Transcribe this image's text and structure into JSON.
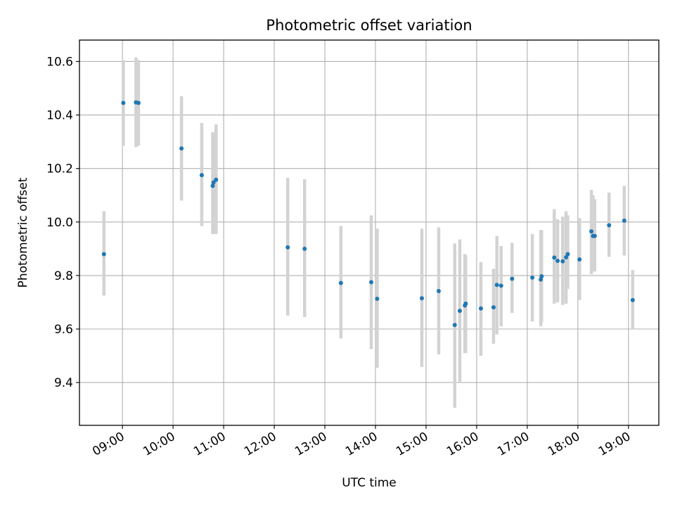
{
  "chart_data": {
    "type": "scatter",
    "title": "Photometric offset variation",
    "xlabel": "UTC time",
    "ylabel": "Photometric offset",
    "x_tick_labels": [
      "09:00",
      "10:00",
      "11:00",
      "12:00",
      "13:00",
      "14:00",
      "15:00",
      "16:00",
      "17:00",
      "18:00",
      "19:00"
    ],
    "y_tick_labels": [
      "9.4",
      "9.6",
      "9.8",
      "10.0",
      "10.2",
      "10.4",
      "10.6"
    ],
    "y_ticks": [
      9.4,
      9.6,
      9.8,
      10.0,
      10.2,
      10.4,
      10.6
    ],
    "xlim": [
      "08:09",
      "19:36"
    ],
    "ylim": [
      9.24,
      10.68
    ],
    "grid": true,
    "colors": {
      "point": "#1f77b4",
      "errorbar": "#d3d3d3",
      "grid": "#b0b0b0",
      "axes": "#000000"
    },
    "points": [
      {
        "time": "08:38",
        "y": 9.88,
        "ylo": 9.725,
        "yhi": 10.04
      },
      {
        "time": "09:01",
        "y": 10.445,
        "ylo": 10.285,
        "yhi": 10.605
      },
      {
        "time": "09:16",
        "y": 10.447,
        "ylo": 10.28,
        "yhi": 10.615
      },
      {
        "time": "09:19",
        "y": 10.445,
        "ylo": 10.285,
        "yhi": 10.605
      },
      {
        "time": "10:10",
        "y": 10.275,
        "ylo": 10.08,
        "yhi": 10.47
      },
      {
        "time": "10:34",
        "y": 10.175,
        "ylo": 9.985,
        "yhi": 10.37
      },
      {
        "time": "10:47",
        "y": 10.135,
        "ylo": 9.955,
        "yhi": 10.335
      },
      {
        "time": "10:48",
        "y": 10.148,
        "ylo": 9.955,
        "yhi": 10.335
      },
      {
        "time": "10:51",
        "y": 10.158,
        "ylo": 9.955,
        "yhi": 10.365
      },
      {
        "time": "12:16",
        "y": 9.905,
        "ylo": 9.65,
        "yhi": 10.165
      },
      {
        "time": "12:36",
        "y": 9.9,
        "ylo": 9.645,
        "yhi": 10.16
      },
      {
        "time": "13:19",
        "y": 9.772,
        "ylo": 9.565,
        "yhi": 9.985
      },
      {
        "time": "13:55",
        "y": 9.775,
        "ylo": 9.525,
        "yhi": 10.025
      },
      {
        "time": "14:02",
        "y": 9.713,
        "ylo": 9.455,
        "yhi": 9.975
      },
      {
        "time": "14:55",
        "y": 9.715,
        "ylo": 9.458,
        "yhi": 9.975
      },
      {
        "time": "15:15",
        "y": 9.742,
        "ylo": 9.505,
        "yhi": 9.98
      },
      {
        "time": "15:34",
        "y": 9.615,
        "ylo": 9.305,
        "yhi": 9.92
      },
      {
        "time": "15:40",
        "y": 9.668,
        "ylo": 9.4,
        "yhi": 9.935
      },
      {
        "time": "15:46",
        "y": 9.688,
        "ylo": 9.51,
        "yhi": 9.88
      },
      {
        "time": "15:47",
        "y": 9.695,
        "ylo": 9.51,
        "yhi": 9.875
      },
      {
        "time": "16:05",
        "y": 9.677,
        "ylo": 9.5,
        "yhi": 9.85
      },
      {
        "time": "16:20",
        "y": 9.681,
        "ylo": 9.545,
        "yhi": 9.825
      },
      {
        "time": "16:24",
        "y": 9.765,
        "ylo": 9.58,
        "yhi": 9.948
      },
      {
        "time": "16:29",
        "y": 9.762,
        "ylo": 9.61,
        "yhi": 9.91
      },
      {
        "time": "16:42",
        "y": 9.788,
        "ylo": 9.66,
        "yhi": 9.922
      },
      {
        "time": "17:06",
        "y": 9.792,
        "ylo": 9.628,
        "yhi": 9.955
      },
      {
        "time": "17:16",
        "y": 9.785,
        "ylo": 9.61,
        "yhi": 9.97
      },
      {
        "time": "17:17",
        "y": 9.797,
        "ylo": 9.625,
        "yhi": 9.97
      },
      {
        "time": "17:32",
        "y": 9.867,
        "ylo": 9.695,
        "yhi": 10.048
      },
      {
        "time": "17:36",
        "y": 9.855,
        "ylo": 9.7,
        "yhi": 10.01
      },
      {
        "time": "17:42",
        "y": 9.853,
        "ylo": 9.69,
        "yhi": 10.02
      },
      {
        "time": "17:46",
        "y": 9.868,
        "ylo": 9.695,
        "yhi": 10.04
      },
      {
        "time": "17:48",
        "y": 9.88,
        "ylo": 9.75,
        "yhi": 10.025
      },
      {
        "time": "18:02",
        "y": 9.86,
        "ylo": 9.708,
        "yhi": 10.015
      },
      {
        "time": "18:16",
        "y": 9.965,
        "ylo": 9.805,
        "yhi": 10.12
      },
      {
        "time": "18:18",
        "y": 9.948,
        "ylo": 9.815,
        "yhi": 10.1
      },
      {
        "time": "18:20",
        "y": 9.948,
        "ylo": 9.815,
        "yhi": 10.085
      },
      {
        "time": "18:37",
        "y": 9.988,
        "ylo": 9.87,
        "yhi": 10.11
      },
      {
        "time": "18:55",
        "y": 10.005,
        "ylo": 9.875,
        "yhi": 10.135
      },
      {
        "time": "19:05",
        "y": 9.708,
        "ylo": 9.598,
        "yhi": 9.82
      }
    ]
  }
}
